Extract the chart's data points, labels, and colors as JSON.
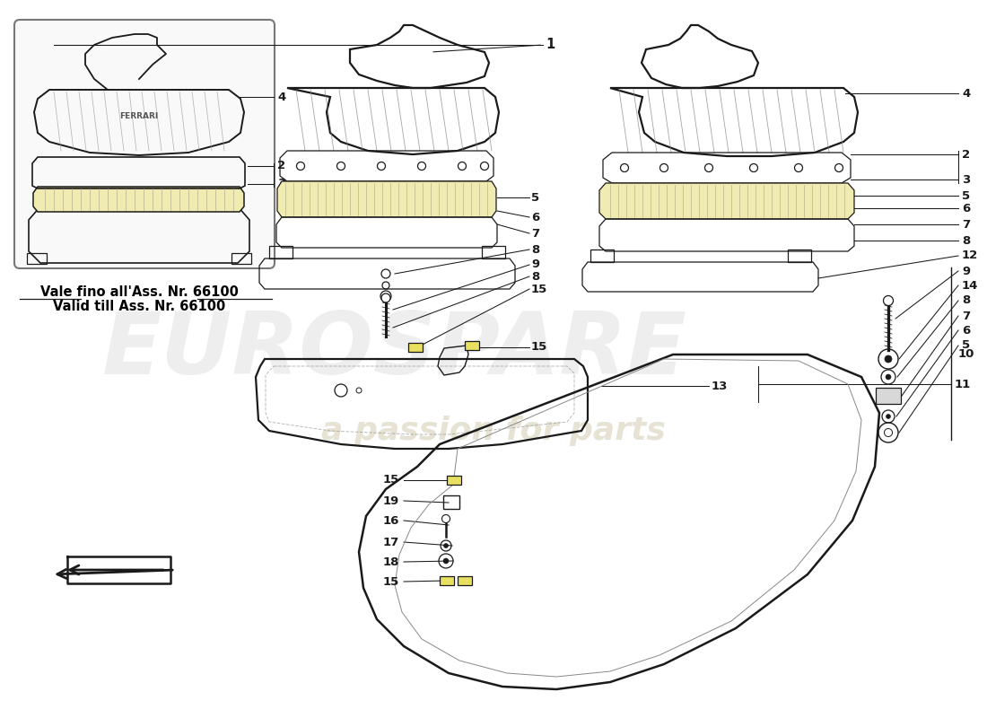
{
  "background_color": "#ffffff",
  "watermark1": "EUROSPARE",
  "watermark2": "a passion for parts",
  "note1": "Vale fino all'Ass. Nr. 66100",
  "note2": "Valid till Ass. Nr. 66100",
  "line_color": "#1a1a1a",
  "part_color": "#1a1a1a",
  "filter_color": "#f0ebb0",
  "filter_color2": "#d4c870",
  "clip_color": "#e8e060",
  "lw_main": 1.6,
  "lw_thin": 0.9,
  "lw_leader": 0.75
}
